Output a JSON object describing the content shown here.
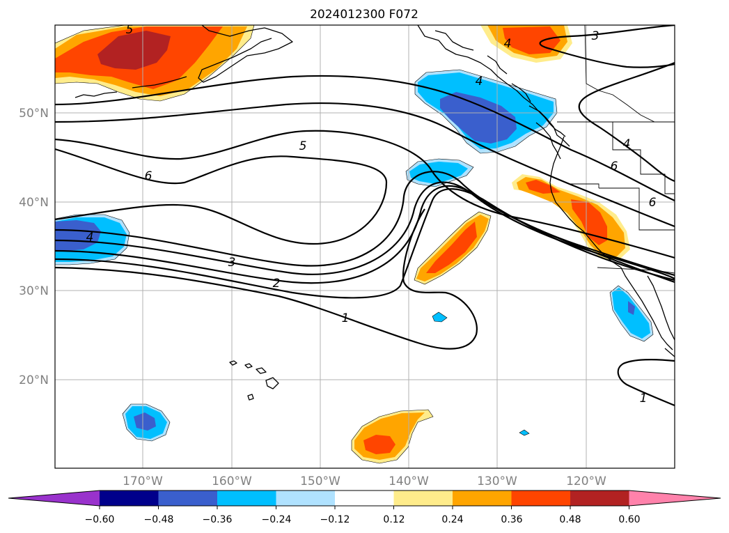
{
  "title": "2024012300 F072",
  "map": {
    "lat_ticks": [
      "50°N",
      "40°N",
      "30°N",
      "20°N"
    ],
    "lon_ticks": [
      "170°W",
      "160°W",
      "150°W",
      "140°W",
      "130°W",
      "120°W"
    ],
    "gridlines": true
  },
  "contour_labels": [
    "5",
    "3",
    "4",
    "5",
    "6",
    "4",
    "6",
    "3",
    "2",
    "1",
    "1",
    "4",
    "6",
    "4"
  ],
  "colorbar": {
    "ticks": [
      "−0.60",
      "−0.48",
      "−0.36",
      "−0.24",
      "−0.12",
      "0.12",
      "0.24",
      "0.36",
      "0.48",
      "0.60"
    ],
    "colors": [
      "#9932cc",
      "#00008b",
      "#3a5fcd",
      "#00bfff",
      "#b0e2ff",
      "#ffffff",
      "#ffec8b",
      "#ffa500",
      "#ff4500",
      "#b22222",
      "#ff82ab"
    ],
    "extend": "both"
  },
  "colors": {
    "neg_light": "#b0e2ff",
    "neg_mid": "#00bfff",
    "neg_strong": "#3a5fcd",
    "pos_light": "#ffec8b",
    "pos_mid": "#ffa500",
    "pos_strong": "#ff4500",
    "pos_max": "#b22222"
  }
}
